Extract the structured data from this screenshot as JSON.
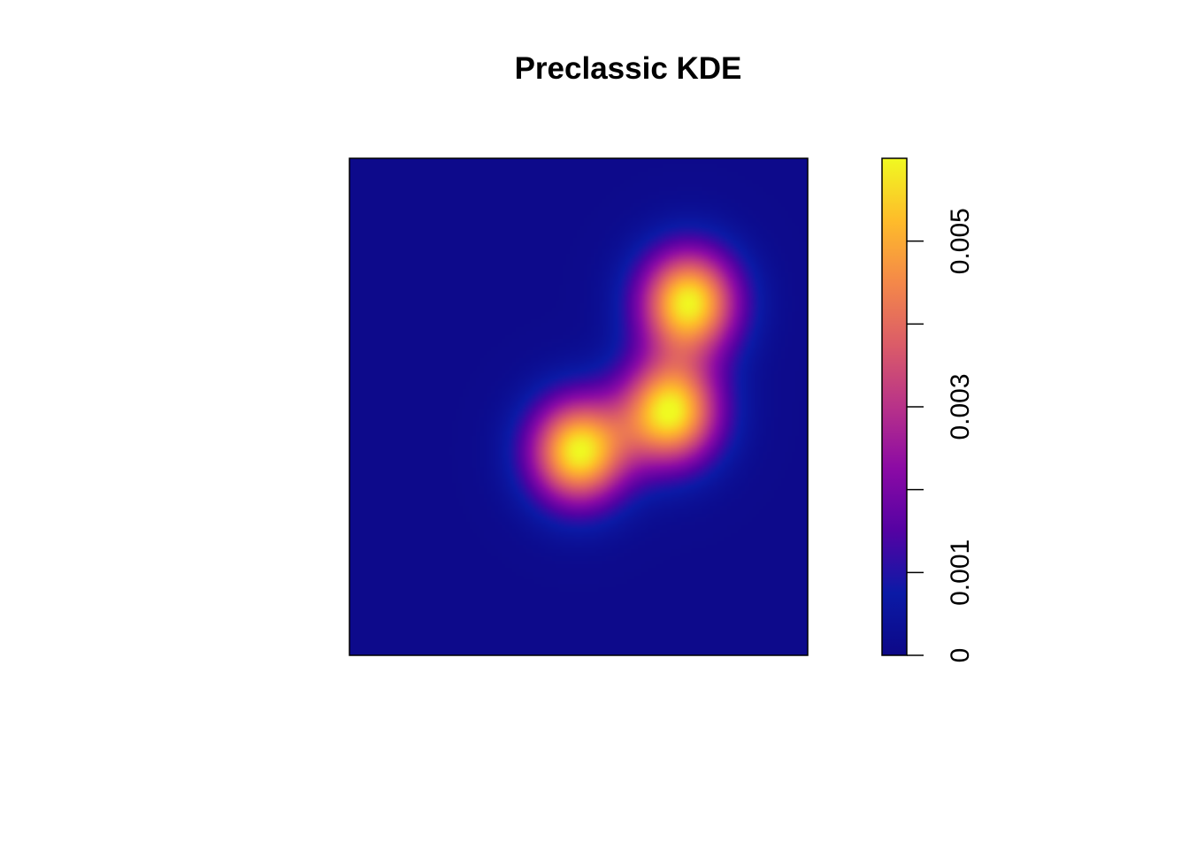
{
  "chart_data": {
    "type": "heatmap",
    "title": "Preclassic KDE",
    "colorbar": {
      "range": [
        0,
        0.006
      ],
      "ticks": [
        0,
        0.001,
        0.002,
        0.003,
        0.004,
        0.005
      ],
      "tick_labels": [
        "0",
        "0.001",
        "",
        "0.003",
        "",
        "0.005"
      ],
      "palette": [
        "#0d0887",
        "#0b1aa6",
        "#5402a3",
        "#8b0aa5",
        "#b83289",
        "#db5c68",
        "#f48849",
        "#febc2a",
        "#f0f921"
      ]
    },
    "x_range": [
      0,
      1
    ],
    "y_range": [
      0,
      1
    ],
    "density_peaks": [
      {
        "x": 0.5,
        "y": 0.41,
        "value": 0.0058
      },
      {
        "x": 0.7,
        "y": 0.49,
        "value": 0.0058
      },
      {
        "x": 0.74,
        "y": 0.71,
        "value": 0.0058
      }
    ],
    "background_value": 0.0001,
    "axes_shown": false
  }
}
